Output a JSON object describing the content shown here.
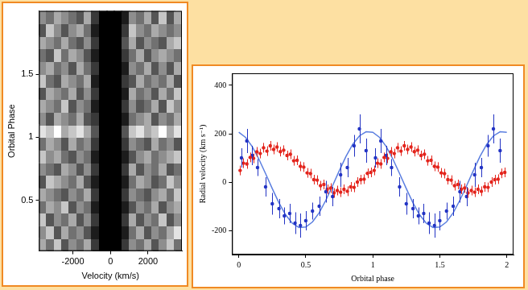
{
  "chart_data": [
    {
      "type": "heatmap",
      "x_label": "Velocity (km/s)",
      "y_label": "Orbital Phase",
      "xlim": [
        -3800,
        3800
      ],
      "xticks": [
        -2000,
        0,
        2000
      ],
      "ylim": [
        0.1,
        2
      ],
      "yticks": [
        0.5,
        1,
        1.5
      ],
      "grid": false,
      "x": [
        -3600,
        -3200,
        -2800,
        -2400,
        -2000,
        -1600,
        -1200,
        -800,
        -400,
        0,
        400,
        800,
        1200,
        1600,
        2000,
        2400,
        2800,
        3200,
        3600
      ],
      "y": [
        0.15,
        0.25,
        0.35,
        0.45,
        0.55,
        0.65,
        0.75,
        0.85,
        0.95,
        1.05,
        1.15,
        1.25,
        1.35,
        1.45,
        1.55,
        1.65,
        1.75,
        1.85,
        1.95
      ],
      "cells": [
        [
          6,
          4,
          7,
          3,
          5,
          4,
          6,
          2,
          0,
          0,
          0,
          2,
          5,
          4,
          6,
          3,
          5,
          7,
          4
        ],
        [
          5,
          7,
          3,
          6,
          4,
          5,
          3,
          1,
          0,
          0,
          0,
          1,
          4,
          6,
          3,
          5,
          4,
          6,
          8
        ],
        [
          7,
          3,
          5,
          4,
          6,
          3,
          5,
          2,
          0,
          0,
          0,
          2,
          6,
          3,
          5,
          4,
          7,
          3,
          5
        ],
        [
          4,
          6,
          5,
          7,
          3,
          5,
          4,
          1,
          0,
          0,
          0,
          1,
          3,
          5,
          4,
          6,
          3,
          5,
          6
        ],
        [
          6,
          5,
          4,
          3,
          5,
          4,
          6,
          2,
          0,
          0,
          0,
          2,
          5,
          4,
          3,
          5,
          6,
          4,
          7
        ],
        [
          3,
          7,
          6,
          5,
          4,
          6,
          3,
          1,
          0,
          0,
          0,
          1,
          4,
          6,
          5,
          3,
          4,
          7,
          5
        ],
        [
          5,
          4,
          3,
          6,
          5,
          3,
          5,
          2,
          0,
          0,
          0,
          2,
          6,
          3,
          5,
          4,
          6,
          3,
          4
        ],
        [
          7,
          5,
          6,
          4,
          3,
          5,
          4,
          1,
          0,
          0,
          0,
          1,
          3,
          5,
          6,
          4,
          5,
          6,
          7
        ],
        [
          4,
          6,
          5,
          3,
          6,
          4,
          5,
          2,
          0,
          0,
          0,
          2,
          5,
          4,
          3,
          6,
          4,
          5,
          3
        ],
        [
          8,
          7,
          9,
          6,
          7,
          8,
          6,
          3,
          0,
          0,
          0,
          3,
          7,
          8,
          6,
          7,
          9,
          6,
          8
        ],
        [
          5,
          3,
          6,
          5,
          4,
          6,
          3,
          2,
          0,
          0,
          0,
          1,
          4,
          5,
          6,
          3,
          5,
          4,
          6
        ],
        [
          6,
          5,
          4,
          7,
          3,
          5,
          4,
          1,
          0,
          0,
          0,
          2,
          5,
          3,
          4,
          6,
          3,
          7,
          5
        ],
        [
          3,
          6,
          5,
          4,
          6,
          3,
          5,
          2,
          0,
          0,
          0,
          1,
          6,
          4,
          5,
          3,
          6,
          4,
          7
        ],
        [
          7,
          4,
          3,
          6,
          5,
          4,
          6,
          1,
          0,
          0,
          0,
          2,
          3,
          6,
          4,
          5,
          4,
          6,
          3
        ],
        [
          5,
          6,
          4,
          5,
          3,
          6,
          4,
          2,
          0,
          0,
          0,
          1,
          5,
          4,
          6,
          3,
          5,
          3,
          6
        ],
        [
          4,
          3,
          7,
          4,
          6,
          5,
          3,
          1,
          0,
          0,
          0,
          2,
          4,
          6,
          3,
          5,
          6,
          5,
          4
        ],
        [
          6,
          5,
          4,
          6,
          4,
          3,
          5,
          2,
          0,
          0,
          0,
          3,
          6,
          3,
          5,
          4,
          3,
          6,
          7
        ],
        [
          3,
          7,
          5,
          3,
          5,
          6,
          4,
          1,
          0,
          0,
          0,
          2,
          7,
          5,
          4,
          6,
          5,
          4,
          5
        ],
        [
          5,
          4,
          6,
          5,
          4,
          3,
          6,
          2,
          0,
          0,
          0,
          1,
          5,
          4,
          6,
          3,
          7,
          3,
          6
        ]
      ]
    },
    {
      "type": "scatter",
      "x_label": "Orbital phase",
      "y_label": "Radial velocity (km s⁻¹)",
      "xlim": [
        -0.05,
        2.05
      ],
      "xticks": [
        0,
        0.5,
        1,
        1.5,
        2
      ],
      "ylim": [
        -300,
        450
      ],
      "yticks": [
        -200,
        0,
        200,
        400
      ],
      "grid": false,
      "series": [
        {
          "type": "scatter",
          "color": "#e3241c",
          "marker": "circle",
          "error": 20,
          "x": [
            0.01,
            0.035,
            0.06,
            0.085,
            0.11,
            0.135,
            0.16,
            0.185,
            0.21,
            0.235,
            0.26,
            0.285,
            0.31,
            0.335,
            0.36,
            0.385,
            0.41,
            0.435,
            0.46,
            0.485,
            0.51,
            0.535,
            0.56,
            0.585,
            0.61,
            0.635,
            0.66,
            0.685,
            0.71,
            0.735,
            0.76,
            0.785,
            0.81,
            0.835,
            0.86,
            0.885,
            0.91,
            0.935,
            0.96,
            0.985,
            1.01,
            1.035,
            1.06,
            1.085,
            1.11,
            1.135,
            1.16,
            1.185,
            1.21,
            1.235,
            1.26,
            1.285,
            1.31,
            1.335,
            1.36,
            1.385,
            1.41,
            1.435,
            1.46,
            1.485,
            1.51,
            1.535,
            1.56,
            1.585,
            1.61,
            1.635,
            1.66,
            1.685,
            1.71,
            1.735,
            1.76,
            1.785,
            1.81,
            1.835,
            1.86,
            1.885,
            1.91,
            1.935,
            1.96,
            1.985
          ],
          "values": [
            48,
            78,
            75,
            102,
            98,
            125,
            118,
            142,
            128,
            150,
            135,
            145,
            126,
            132,
            110,
            115,
            88,
            90,
            65,
            62,
            38,
            35,
            10,
            8,
            -15,
            -10,
            -30,
            -25,
            -45,
            -35,
            -42,
            -30,
            -38,
            -20,
            -22,
            0,
            10,
            12,
            36,
            40,
            48,
            78,
            75,
            102,
            98,
            125,
            118,
            142,
            128,
            150,
            135,
            145,
            126,
            132,
            110,
            115,
            88,
            90,
            65,
            62,
            38,
            35,
            10,
            8,
            -15,
            -10,
            -30,
            -25,
            -45,
            -35,
            -42,
            -30,
            -38,
            -20,
            -22,
            0,
            10,
            12,
            36,
            40
          ]
        },
        {
          "type": "scatter",
          "color": "#2233c4",
          "marker": "circle",
          "x": [
            0.02,
            0.06,
            0.1,
            0.14,
            0.2,
            0.25,
            0.3,
            0.34,
            0.38,
            0.42,
            0.46,
            0.5,
            0.55,
            0.6,
            0.65,
            0.7,
            0.76,
            0.81,
            0.86,
            0.9,
            0.95,
            1.02,
            1.06,
            1.1,
            1.14,
            1.2,
            1.25,
            1.3,
            1.34,
            1.38,
            1.42,
            1.46,
            1.5,
            1.55,
            1.6,
            1.65,
            1.7,
            1.76,
            1.81,
            1.86,
            1.9,
            1.95
          ],
          "values": [
            100,
            170,
            110,
            60,
            -20,
            -90,
            -110,
            -140,
            -130,
            -170,
            -180,
            -160,
            -120,
            -100,
            -40,
            -60,
            30,
            60,
            150,
            220,
            130,
            100,
            170,
            110,
            60,
            -20,
            -90,
            -110,
            -140,
            -130,
            -170,
            -180,
            -160,
            -120,
            -100,
            -40,
            -60,
            30,
            60,
            150,
            220,
            130
          ],
          "error": [
            40,
            50,
            40,
            35,
            40,
            45,
            40,
            35,
            40,
            45,
            50,
            40,
            35,
            40,
            45,
            40,
            50,
            40,
            45,
            60,
            50,
            40,
            50,
            40,
            35,
            40,
            45,
            40,
            35,
            40,
            45,
            50,
            40,
            35,
            40,
            45,
            40,
            50,
            40,
            45,
            60,
            50
          ]
        },
        {
          "type": "line",
          "color": "#5b7fe0",
          "line_style": "solid",
          "x": [
            0,
            0.05,
            0.1,
            0.15,
            0.2,
            0.25,
            0.3,
            0.35,
            0.4,
            0.45,
            0.5,
            0.55,
            0.6,
            0.65,
            0.7,
            0.75,
            0.8,
            0.85,
            0.9,
            0.95,
            1,
            1.05,
            1.1,
            1.15,
            1.2,
            1.25,
            1.3,
            1.35,
            1.4,
            1.45,
            1.5,
            1.55,
            1.6,
            1.65,
            1.7,
            1.75,
            1.8,
            1.85,
            1.9,
            1.95,
            2
          ],
          "values": [
            206,
            185,
            147,
            95,
            35,
            -27,
            -86,
            -136,
            -171,
            -188,
            -186,
            -165,
            -127,
            -75,
            -15,
            47,
            106,
            156,
            191,
            208,
            206,
            185,
            147,
            95,
            35,
            -27,
            -86,
            -136,
            -171,
            -188,
            -186,
            -165,
            -127,
            -75,
            -15,
            47,
            106,
            156,
            191,
            208,
            206
          ]
        }
      ]
    }
  ]
}
